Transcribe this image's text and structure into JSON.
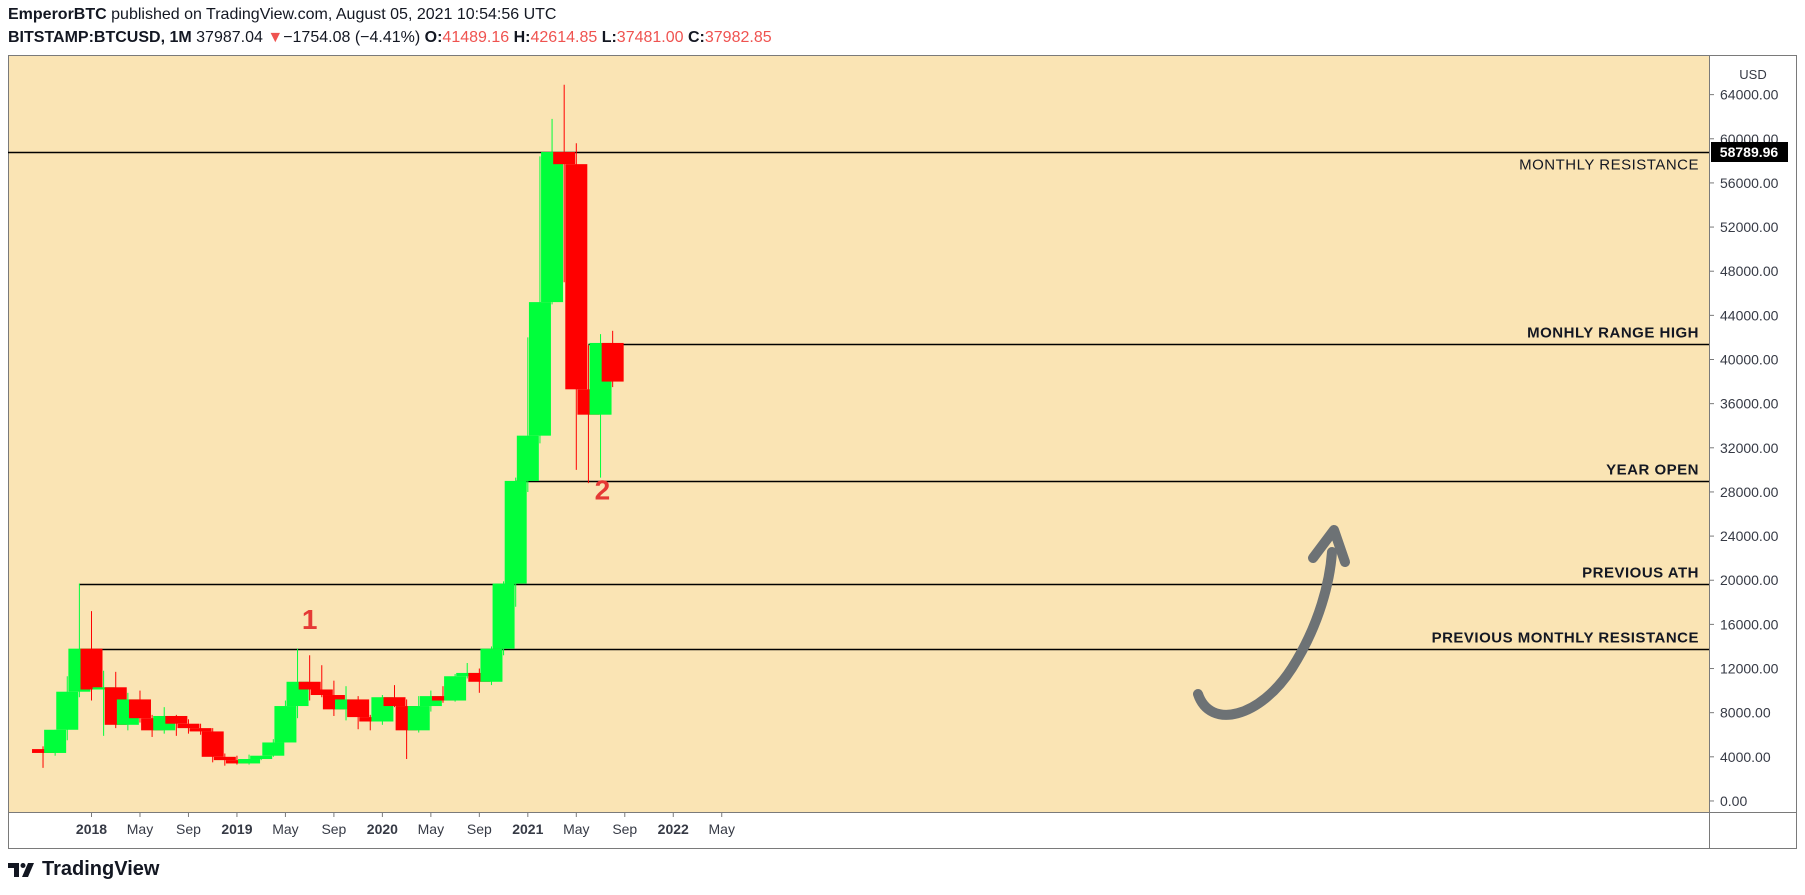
{
  "header": {
    "author": "EmperorBTC",
    "published_text": "published on TradingView.com, August 05, 2021 10:54:56 UTC",
    "symbol": "BITSTAMP:BTCUSD, 1M",
    "last": "37987.04",
    "change": "−1754.08 (−4.41%)",
    "o_label": "O:",
    "o_val": "41489.16",
    "h_label": "H:",
    "h_val": "42614.85",
    "l_label": "L:",
    "l_val": "37481.00",
    "c_label": "C:",
    "c_val": "37982.85"
  },
  "colors": {
    "background": "#fae4b4",
    "up": "#00ff3b",
    "down": "#ff0000",
    "annotation": "#e53935",
    "arrow": "#6d7275"
  },
  "footer": {
    "logo_text": "TradingView"
  },
  "chart_data": {
    "type": "candlestick",
    "currency": "USD",
    "price_label": "58789.96",
    "ylim": [
      -1000,
      67500
    ],
    "y_ticks": [
      "0.00",
      "4000.00",
      "8000.00",
      "12000.00",
      "16000.00",
      "20000.00",
      "24000.00",
      "28000.00",
      "32000.00",
      "36000.00",
      "40000.00",
      "44000.00",
      "48000.00",
      "52000.00",
      "56000.00",
      "60000.00",
      "64000.00"
    ],
    "x_ticks": [
      {
        "label": "2018",
        "bold": true,
        "month": "2018-01"
      },
      {
        "label": "May",
        "bold": false,
        "month": "2018-05"
      },
      {
        "label": "Sep",
        "bold": false,
        "month": "2018-09"
      },
      {
        "label": "2019",
        "bold": true,
        "month": "2019-01"
      },
      {
        "label": "May",
        "bold": false,
        "month": "2019-05"
      },
      {
        "label": "Sep",
        "bold": false,
        "month": "2019-09"
      },
      {
        "label": "2020",
        "bold": true,
        "month": "2020-01"
      },
      {
        "label": "May",
        "bold": false,
        "month": "2020-05"
      },
      {
        "label": "Sep",
        "bold": false,
        "month": "2020-09"
      },
      {
        "label": "2021",
        "bold": true,
        "month": "2021-01"
      },
      {
        "label": "May",
        "bold": false,
        "month": "2021-05"
      },
      {
        "label": "Sep",
        "bold": false,
        "month": "2021-09"
      },
      {
        "label": "2022",
        "bold": true,
        "month": "2022-01"
      },
      {
        "label": "May",
        "bold": false,
        "month": "2022-05"
      }
    ],
    "candles": [
      {
        "t": "2017-09",
        "o": 4700,
        "h": 4950,
        "l": 3000,
        "c": 4350
      },
      {
        "t": "2017-10",
        "o": 4350,
        "h": 6450,
        "l": 4100,
        "c": 6450
      },
      {
        "t": "2017-11",
        "o": 6450,
        "h": 11300,
        "l": 5500,
        "c": 9900
      },
      {
        "t": "2017-12",
        "o": 9900,
        "h": 19700,
        "l": 9400,
        "c": 13800
      },
      {
        "t": "2018-01",
        "o": 13800,
        "h": 17200,
        "l": 9100,
        "c": 10100
      },
      {
        "t": "2018-02",
        "o": 10100,
        "h": 11800,
        "l": 5900,
        "c": 10300
      },
      {
        "t": "2018-03",
        "o": 10300,
        "h": 11700,
        "l": 6600,
        "c": 6900
      },
      {
        "t": "2018-04",
        "o": 6900,
        "h": 9800,
        "l": 6400,
        "c": 9200
      },
      {
        "t": "2018-05",
        "o": 9200,
        "h": 10000,
        "l": 7100,
        "c": 7500
      },
      {
        "t": "2018-06",
        "o": 7500,
        "h": 7800,
        "l": 5800,
        "c": 6400
      },
      {
        "t": "2018-07",
        "o": 6400,
        "h": 8500,
        "l": 6100,
        "c": 7700
      },
      {
        "t": "2018-08",
        "o": 7700,
        "h": 7800,
        "l": 5900,
        "c": 7000
      },
      {
        "t": "2018-09",
        "o": 7000,
        "h": 7400,
        "l": 6100,
        "c": 6600
      },
      {
        "t": "2018-10",
        "o": 6600,
        "h": 7000,
        "l": 6000,
        "c": 6300
      },
      {
        "t": "2018-11",
        "o": 6300,
        "h": 6600,
        "l": 3500,
        "c": 4000
      },
      {
        "t": "2018-12",
        "o": 4000,
        "h": 4300,
        "l": 3200,
        "c": 3700
      },
      {
        "t": "2019-01",
        "o": 3700,
        "h": 4100,
        "l": 3300,
        "c": 3400
      },
      {
        "t": "2019-02",
        "o": 3400,
        "h": 4200,
        "l": 3300,
        "c": 3800
      },
      {
        "t": "2019-03",
        "o": 3800,
        "h": 4100,
        "l": 3700,
        "c": 4100
      },
      {
        "t": "2019-04",
        "o": 4100,
        "h": 5600,
        "l": 4000,
        "c": 5300
      },
      {
        "t": "2019-05",
        "o": 5300,
        "h": 9100,
        "l": 5300,
        "c": 8600
      },
      {
        "t": "2019-06",
        "o": 8600,
        "h": 13800,
        "l": 7500,
        "c": 10800
      },
      {
        "t": "2019-07",
        "o": 10800,
        "h": 13200,
        "l": 9100,
        "c": 10100
      },
      {
        "t": "2019-08",
        "o": 10100,
        "h": 12300,
        "l": 9400,
        "c": 9600
      },
      {
        "t": "2019-09",
        "o": 9600,
        "h": 10900,
        "l": 7700,
        "c": 8300
      },
      {
        "t": "2019-10",
        "o": 8300,
        "h": 10400,
        "l": 7300,
        "c": 9200
      },
      {
        "t": "2019-11",
        "o": 9200,
        "h": 9500,
        "l": 6500,
        "c": 7600
      },
      {
        "t": "2019-12",
        "o": 7600,
        "h": 7800,
        "l": 6400,
        "c": 7200
      },
      {
        "t": "2020-01",
        "o": 7200,
        "h": 9600,
        "l": 6900,
        "c": 9400
      },
      {
        "t": "2020-02",
        "o": 9400,
        "h": 10500,
        "l": 8500,
        "c": 8600
      },
      {
        "t": "2020-03",
        "o": 8600,
        "h": 9200,
        "l": 3800,
        "c": 6400
      },
      {
        "t": "2020-04",
        "o": 6400,
        "h": 9500,
        "l": 6200,
        "c": 8600
      },
      {
        "t": "2020-05",
        "o": 8600,
        "h": 10000,
        "l": 8100,
        "c": 9500
      },
      {
        "t": "2020-06",
        "o": 9500,
        "h": 10400,
        "l": 8900,
        "c": 9100
      },
      {
        "t": "2020-07",
        "o": 9100,
        "h": 11500,
        "l": 9000,
        "c": 11300
      },
      {
        "t": "2020-08",
        "o": 11300,
        "h": 12500,
        "l": 11100,
        "c": 11600
      },
      {
        "t": "2020-09",
        "o": 11600,
        "h": 12000,
        "l": 9800,
        "c": 10800
      },
      {
        "t": "2020-10",
        "o": 10800,
        "h": 14000,
        "l": 10500,
        "c": 13800
      },
      {
        "t": "2020-11",
        "o": 13800,
        "h": 19900,
        "l": 13200,
        "c": 19700
      },
      {
        "t": "2020-12",
        "o": 19700,
        "h": 29300,
        "l": 17600,
        "c": 29000
      },
      {
        "t": "2021-01",
        "o": 29000,
        "h": 42000,
        "l": 28000,
        "c": 33100
      },
      {
        "t": "2021-02",
        "o": 33100,
        "h": 58400,
        "l": 32400,
        "c": 45200
      },
      {
        "t": "2021-03",
        "o": 45200,
        "h": 61800,
        "l": 45000,
        "c": 58800
      },
      {
        "t": "2021-04",
        "o": 58800,
        "h": 64900,
        "l": 47000,
        "c": 57700
      },
      {
        "t": "2021-05",
        "o": 57700,
        "h": 59600,
        "l": 30000,
        "c": 37300
      },
      {
        "t": "2021-06",
        "o": 37300,
        "h": 41300,
        "l": 28800,
        "c": 35000
      },
      {
        "t": "2021-07",
        "o": 35000,
        "h": 42300,
        "l": 29300,
        "c": 41500
      },
      {
        "t": "2021-08",
        "o": 41500,
        "h": 42600,
        "l": 37500,
        "c": 38000
      }
    ],
    "levels": [
      {
        "price": 58789.96,
        "label": "MONTHLY RESISTANCE",
        "bold": false,
        "from": "start"
      },
      {
        "price": 41400,
        "label": "MONHLY RANGE HIGH",
        "bold": true,
        "from": "2021-06"
      },
      {
        "price": 29000,
        "label": "YEAR OPEN",
        "bold": true,
        "from": "2020-12"
      },
      {
        "price": 19700,
        "label": "PREVIOUS ATH",
        "bold": true,
        "from": "2017-12"
      },
      {
        "price": 13800,
        "label": "PREVIOUS MONTHLY RESISTANCE",
        "bold": true,
        "from": "2017-12"
      }
    ],
    "annotations": [
      {
        "text": "1",
        "t": "2019-07",
        "price": 15600
      },
      {
        "text": "2",
        "t": "2021-06",
        "price": 27300
      }
    ]
  }
}
